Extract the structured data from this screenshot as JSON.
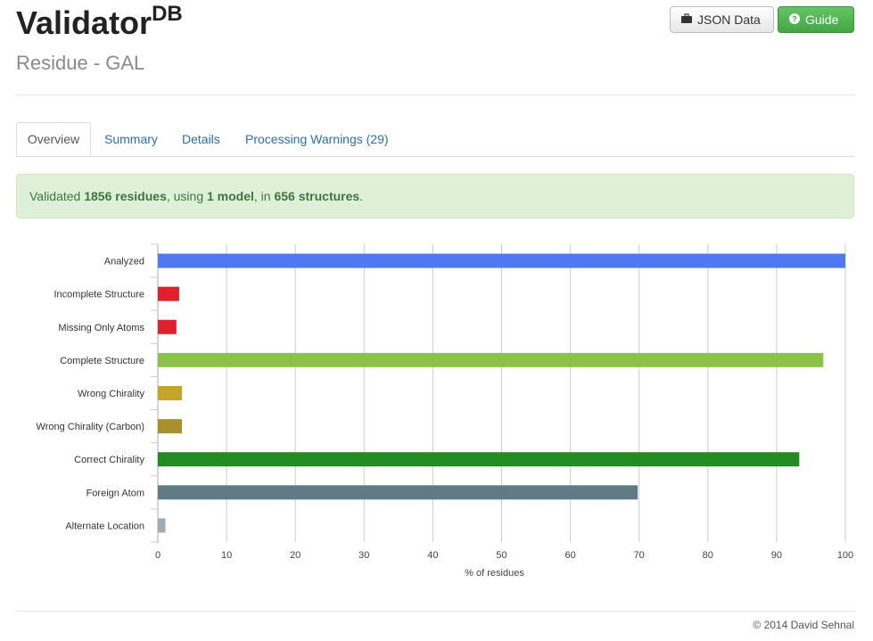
{
  "header": {
    "title": "Validator",
    "title_sup": "DB",
    "subtitle": "Residue - GAL"
  },
  "buttons": {
    "json_label": "JSON Data",
    "guide_label": "Guide"
  },
  "tabs": [
    {
      "label": "Overview",
      "active": true
    },
    {
      "label": "Summary",
      "active": false
    },
    {
      "label": "Details",
      "active": false
    },
    {
      "label": "Processing Warnings (29)",
      "active": false
    }
  ],
  "alert": {
    "p1": "Validated ",
    "residues": "1856 residues",
    "p2": ", using ",
    "models": "1 model",
    "p3": ", in ",
    "structures": "656 structures",
    "p4": "."
  },
  "chart_data": {
    "type": "bar",
    "orientation": "horizontal",
    "categories": [
      "Analyzed",
      "Incomplete Structure",
      "Missing Only Atoms",
      "Complete Structure",
      "Wrong Chirality",
      "Wrong Chirality (Carbon)",
      "Correct Chirality",
      "Foreign Atom",
      "Alternate Location"
    ],
    "values": [
      100,
      3.1,
      2.7,
      96.8,
      3.5,
      3.5,
      93.3,
      69.8,
      1.1
    ],
    "colors": [
      "#5078f0",
      "#e0202c",
      "#e0202c",
      "#8bc34a",
      "#c4a42a",
      "#a8912a",
      "#228b22",
      "#607b85",
      "#9eadb5"
    ],
    "xlabel": "% of residues",
    "ylabel": "",
    "xlim": [
      0,
      100
    ],
    "xticks": [
      0,
      10,
      20,
      30,
      40,
      50,
      60,
      70,
      80,
      90,
      100
    ],
    "grid": true
  },
  "footer": {
    "text": "© 2014 David Sehnal"
  }
}
